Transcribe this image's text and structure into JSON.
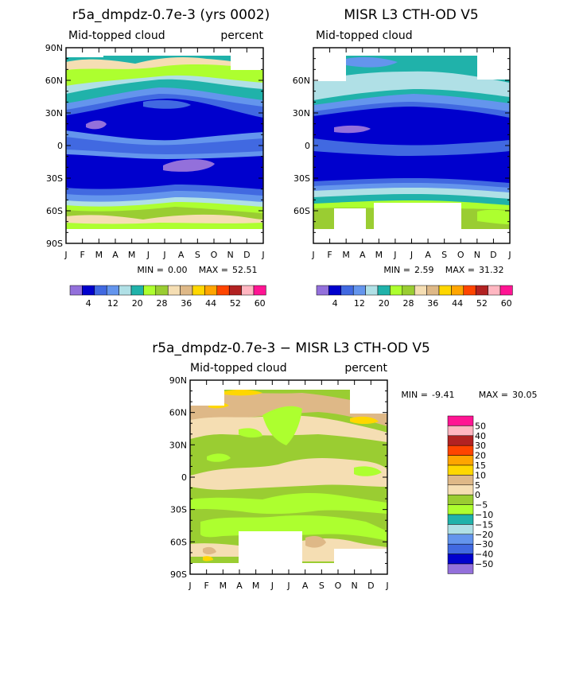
{
  "colors": {
    "fill": [
      "#9370db",
      "#0000cd",
      "#4169e1",
      "#6495ed",
      "#b0e0e6",
      "#20b2aa",
      "#adff2f",
      "#9acd32",
      "#f5deb3",
      "#deb887",
      "#ffd700",
      "#ffa500",
      "#ff4500",
      "#b22222",
      "#ffb6c1",
      "#ff1493"
    ],
    "diff_fill": [
      "#9370db",
      "#0000cd",
      "#4169e1",
      "#6495ed",
      "#b0e0e6",
      "#20b2aa",
      "#adff2f",
      "#9acd32",
      "#f5deb3",
      "#deb887",
      "#ffd700",
      "#ffa500",
      "#ff4500",
      "#b22222",
      "#ffb6c1",
      "#ff1493"
    ]
  },
  "lat_ticks": [
    "90N",
    "60N",
    "30N",
    "0",
    "30S",
    "60S",
    "90S"
  ],
  "month_ticks": [
    "J",
    "F",
    "M",
    "A",
    "M",
    "J",
    "J",
    "A",
    "S",
    "O",
    "N",
    "D",
    "J"
  ],
  "chart_data": [
    {
      "type": "heatmap",
      "title": "r5a_dmpdz-0.7e-3 (yrs 0002)",
      "subtitle_left": "Mid-topped cloud",
      "subtitle_right": "percent",
      "x": "month (Jan–Jan)",
      "y": "latitude (90S–90N)",
      "min_label": "MIN =",
      "min": "0.00",
      "max_label": "MAX =",
      "max": "52.51",
      "levels": [
        "4",
        "12",
        "20",
        "28",
        "36",
        "44",
        "52",
        "60"
      ]
    },
    {
      "type": "heatmap",
      "title": "MISR L3 CTH-OD V5",
      "subtitle_left": "Mid-topped cloud",
      "subtitle_right": "",
      "min_label": "MIN =",
      "min": "2.59",
      "max_label": "MAX =",
      "max": "31.32",
      "levels": [
        "4",
        "12",
        "20",
        "28",
        "36",
        "44",
        "52",
        "60"
      ]
    },
    {
      "type": "heatmap",
      "title": "r5a_dmpdz-0.7e-3 − MISR L3 CTH-OD V5",
      "subtitle_left": "Mid-topped cloud",
      "subtitle_right": "percent",
      "min_label": "MIN =",
      "min": "-9.41",
      "max_label": "MAX =",
      "max": "30.05",
      "levels": [
        "50",
        "40",
        "30",
        "20",
        "15",
        "10",
        "5",
        "0",
        "−5",
        "−10",
        "−15",
        "−20",
        "−30",
        "−40",
        "−50"
      ]
    }
  ]
}
